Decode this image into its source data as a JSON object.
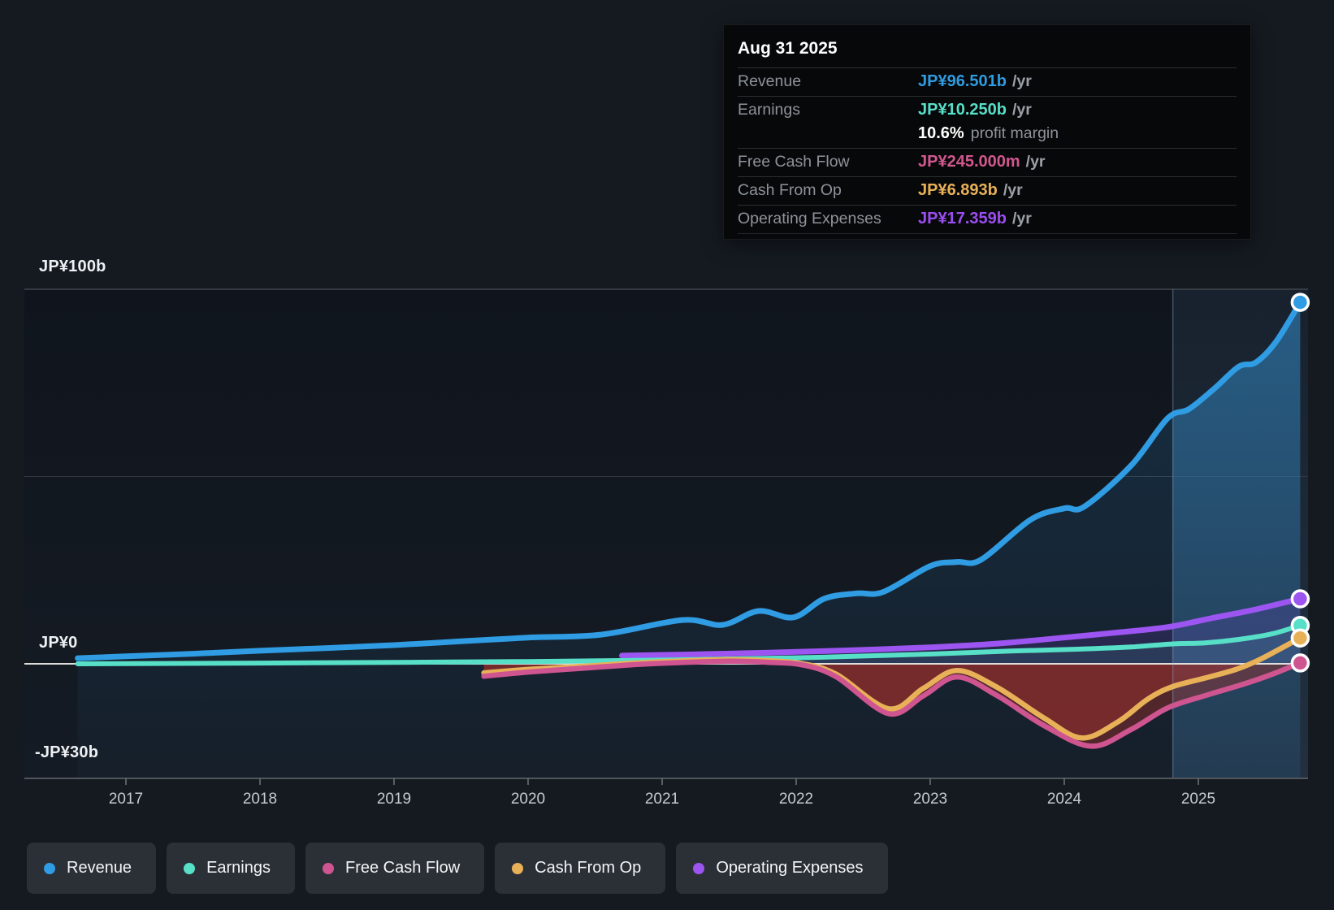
{
  "tooltip": {
    "date": "Aug 31 2025",
    "rows": [
      {
        "label": "Revenue",
        "value": "JP¥96.501b",
        "unit": "/yr",
        "color": "#2f9be0"
      },
      {
        "label": "Earnings",
        "value": "JP¥10.250b",
        "unit": "/yr",
        "color": "#57dfc8"
      },
      {
        "label": "Free Cash Flow",
        "value": "JP¥245.000m",
        "unit": "/yr",
        "color": "#d2578f"
      },
      {
        "label": "Cash From Op",
        "value": "JP¥6.893b",
        "unit": "/yr",
        "color": "#e8b158"
      },
      {
        "label": "Operating Expenses",
        "value": "JP¥17.359b",
        "unit": "/yr",
        "color": "#9c4df2"
      }
    ],
    "profit_margin": {
      "value": "10.6%",
      "label": "profit margin"
    }
  },
  "legend": {
    "items": [
      {
        "label": "Revenue",
        "color": "#2f9ce3"
      },
      {
        "label": "Earnings",
        "color": "#57dfc8"
      },
      {
        "label": "Free Cash Flow",
        "color": "#cf5590"
      },
      {
        "label": "Cash From Op",
        "color": "#e8b158"
      },
      {
        "label": "Operating Expenses",
        "color": "#9c55f0"
      }
    ]
  },
  "chart_data": {
    "type": "line",
    "title": "",
    "x_unit": "year",
    "x_ticks": [
      2017,
      2018,
      2019,
      2020,
      2021,
      2022,
      2023,
      2024,
      2025
    ],
    "y_axis_labels": [
      {
        "text": "JP¥100b",
        "value": 100
      },
      {
        "text": "JP¥0",
        "value": 0
      },
      {
        "text": "-JP¥30b",
        "value": -30
      }
    ],
    "ylim": [
      -30.6,
      100
    ],
    "xlim": [
      2016.64,
      2025.82
    ],
    "value_unit": "JP¥ billions per year",
    "highlight_start": 2024.81,
    "grid_values": [
      100,
      50
    ],
    "negative_fill_color": "rgba(168,48,42,0.42)",
    "series": [
      {
        "name": "Revenue",
        "color": "#2f9ce3",
        "width": 7,
        "values": [
          [
            2016.64,
            1.5
          ],
          [
            2017,
            2
          ],
          [
            2017.5,
            2.7
          ],
          [
            2018,
            3.5
          ],
          [
            2018.5,
            4.2
          ],
          [
            2019,
            5
          ],
          [
            2019.5,
            6
          ],
          [
            2020,
            7
          ],
          [
            2020.55,
            7.8
          ],
          [
            2021.15,
            11.7
          ],
          [
            2021.45,
            10.4
          ],
          [
            2021.72,
            14.1
          ],
          [
            2021.98,
            12.4
          ],
          [
            2022.21,
            17.4
          ],
          [
            2022.45,
            18.8
          ],
          [
            2022.65,
            19.2
          ],
          [
            2023,
            26.1
          ],
          [
            2023.2,
            27.2
          ],
          [
            2023.38,
            27.8
          ],
          [
            2023.75,
            38.5
          ],
          [
            2024,
            41.5
          ],
          [
            2024.15,
            42
          ],
          [
            2024.5,
            53
          ],
          [
            2024.77,
            65.5
          ],
          [
            2024.93,
            68
          ],
          [
            2025.12,
            73.5
          ],
          [
            2025.3,
            79.3
          ],
          [
            2025.43,
            80.5
          ],
          [
            2025.58,
            86
          ],
          [
            2025.76,
            96.5
          ]
        ]
      },
      {
        "name": "Earnings",
        "color": "#57dfc8",
        "width": 6,
        "values": [
          [
            2016.64,
            0
          ],
          [
            2018,
            0.2
          ],
          [
            2019,
            0.4
          ],
          [
            2020,
            0.6
          ],
          [
            2021,
            1.0
          ],
          [
            2022,
            1.6
          ],
          [
            2023,
            2.6
          ],
          [
            2023.6,
            3.4
          ],
          [
            2024.1,
            3.9
          ],
          [
            2024.5,
            4.5
          ],
          [
            2024.8,
            5.3
          ],
          [
            2025.05,
            5.6
          ],
          [
            2025.3,
            6.5
          ],
          [
            2025.55,
            8.0
          ],
          [
            2025.76,
            10.25
          ]
        ]
      },
      {
        "name": "Free Cash Flow",
        "color": "#cf5590",
        "width": 6.5,
        "values": [
          [
            2019.67,
            -3.3
          ],
          [
            2020,
            -2.2
          ],
          [
            2020.4,
            -1.2
          ],
          [
            2020.8,
            -0.2
          ],
          [
            2021.1,
            0.3
          ],
          [
            2021.5,
            0.7
          ],
          [
            2021.8,
            0.4
          ],
          [
            2022.05,
            -0.3
          ],
          [
            2022.3,
            -3.5
          ],
          [
            2022.69,
            -13.3
          ],
          [
            2022.95,
            -8.5
          ],
          [
            2023.2,
            -3.5
          ],
          [
            2023.5,
            -8.5
          ],
          [
            2023.85,
            -16.5
          ],
          [
            2024.2,
            -22
          ],
          [
            2024.5,
            -17.5
          ],
          [
            2024.77,
            -11.8
          ],
          [
            2025.05,
            -8.5
          ],
          [
            2025.33,
            -5.5
          ],
          [
            2025.55,
            -2.8
          ],
          [
            2025.76,
            0.245
          ]
        ]
      },
      {
        "name": "Cash From Op",
        "color": "#e8b158",
        "width": 6.5,
        "values": [
          [
            2019.67,
            -2.4
          ],
          [
            2020,
            -1.5
          ],
          [
            2020.4,
            -0.7
          ],
          [
            2020.7,
            0
          ],
          [
            2021.1,
            0.7
          ],
          [
            2021.5,
            1.1
          ],
          [
            2021.8,
            0.8
          ],
          [
            2022.05,
            0
          ],
          [
            2022.3,
            -2.8
          ],
          [
            2022.69,
            -12
          ],
          [
            2022.95,
            -6.5
          ],
          [
            2023.2,
            -1.8
          ],
          [
            2023.5,
            -6.3
          ],
          [
            2023.85,
            -14.5
          ],
          [
            2024.13,
            -19.8
          ],
          [
            2024.4,
            -15.5
          ],
          [
            2024.62,
            -9.5
          ],
          [
            2024.8,
            -6.2
          ],
          [
            2025.05,
            -3.8
          ],
          [
            2025.28,
            -1.5
          ],
          [
            2025.45,
            1
          ],
          [
            2025.6,
            3.8
          ],
          [
            2025.76,
            6.893
          ]
        ]
      },
      {
        "name": "Operating Expenses",
        "color": "#9c55f0",
        "width": 7,
        "values": [
          [
            2020.7,
            2.2
          ],
          [
            2021.2,
            2.5
          ],
          [
            2021.8,
            3.0
          ],
          [
            2022.4,
            3.6
          ],
          [
            2023,
            4.4
          ],
          [
            2023.5,
            5.4
          ],
          [
            2024,
            7.0
          ],
          [
            2024.35,
            8.2
          ],
          [
            2024.77,
            9.8
          ],
          [
            2025.1,
            12.2
          ],
          [
            2025.4,
            14.3
          ],
          [
            2025.76,
            17.359
          ]
        ]
      }
    ]
  }
}
